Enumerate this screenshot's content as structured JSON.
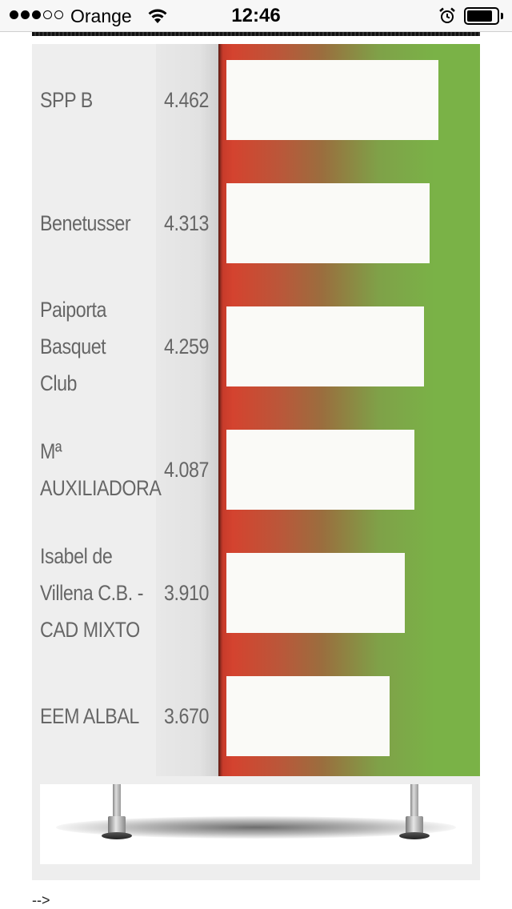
{
  "status_bar": {
    "carrier": "Orange",
    "time": "12:46",
    "signal_bars_filled": 3,
    "signal_bars_total": 5,
    "battery_level": 0.85
  },
  "rows": [
    {
      "name_lines": [
        "SPP B"
      ],
      "score": "4.462",
      "bar_fraction": 0.837
    },
    {
      "name_lines": [
        "Benetusser"
      ],
      "score": "4.313",
      "bar_fraction": 0.8
    },
    {
      "name_lines": [
        "Paiporta",
        "Basquet",
        "Club"
      ],
      "score": "4.259",
      "bar_fraction": 0.78
    },
    {
      "name_lines": [
        "Mª",
        "AUXILIADORA"
      ],
      "score": "4.087",
      "bar_fraction": 0.74
    },
    {
      "name_lines": [
        "Isabel de",
        "Villena C.B. -",
        "CAD MIXTO"
      ],
      "score": "3.910",
      "bar_fraction": 0.702
    },
    {
      "name_lines": [
        "EEM ALBAL"
      ],
      "score": "3.670",
      "bar_fraction": 0.645
    }
  ],
  "colors": {
    "bar_gradient_low": "#d4432f",
    "bar_gradient_high": "#7ab247",
    "bar_fill": "#fafaf7",
    "panel_bg": "#eeeeee",
    "text": "#666666"
  },
  "icons": {
    "wifi": "wifi-icon",
    "alarm": "alarm-clock-icon",
    "battery": "battery-icon"
  },
  "footer": {
    "text": "-->"
  }
}
